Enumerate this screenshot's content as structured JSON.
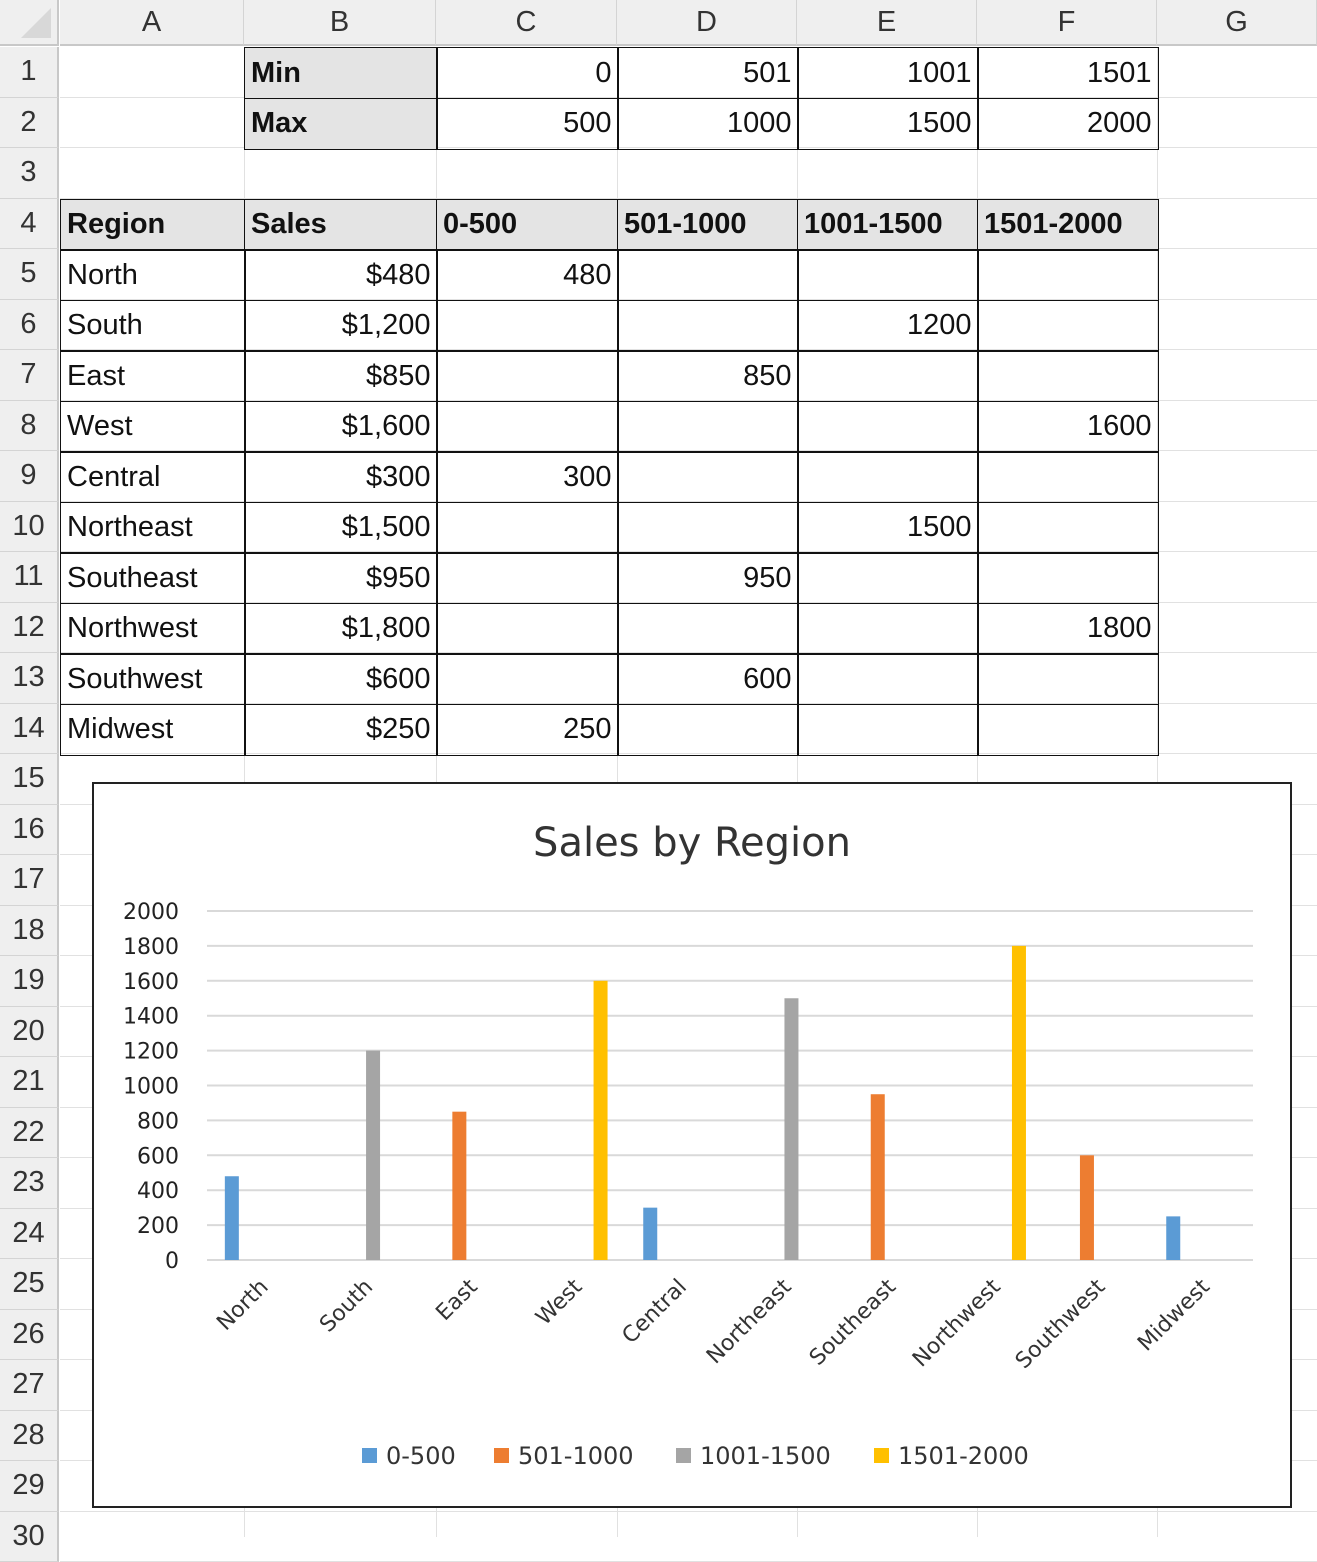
{
  "columns": [
    "A",
    "B",
    "C",
    "D",
    "E",
    "F",
    "G"
  ],
  "rows": [
    "1",
    "2",
    "3",
    "4",
    "5",
    "6",
    "7",
    "8",
    "9",
    "10",
    "11",
    "12",
    "13",
    "14",
    "15",
    "16",
    "17",
    "18",
    "19",
    "20",
    "21",
    "22",
    "23",
    "24",
    "25",
    "26",
    "27",
    "28",
    "29",
    "30"
  ],
  "bins": {
    "min_label": "Min",
    "max_label": "Max",
    "min": [
      "0",
      "501",
      "1001",
      "1501"
    ],
    "max": [
      "500",
      "1000",
      "1500",
      "2000"
    ]
  },
  "table": {
    "headers": [
      "Region",
      "Sales",
      "0-500",
      "501-1000",
      "1001-1500",
      "1501-2000"
    ],
    "rows": [
      [
        "North",
        "$480",
        "480",
        "",
        "",
        ""
      ],
      [
        "South",
        "$1,200",
        "",
        "",
        "1200",
        ""
      ],
      [
        "East",
        "$850",
        "",
        "850",
        "",
        ""
      ],
      [
        "West",
        "$1,600",
        "",
        "",
        "",
        "1600"
      ],
      [
        "Central",
        "$300",
        "300",
        "",
        "",
        ""
      ],
      [
        "Northeast",
        "$1,500",
        "",
        "",
        "1500",
        ""
      ],
      [
        "Southeast",
        "$950",
        "",
        "950",
        "",
        ""
      ],
      [
        "Northwest",
        "$1,800",
        "",
        "",
        "",
        "1800"
      ],
      [
        "Southwest",
        "$600",
        "",
        "600",
        "",
        ""
      ],
      [
        "Midwest",
        "$250",
        "250",
        "",
        "",
        ""
      ]
    ]
  },
  "chart_data": {
    "type": "bar",
    "title": "Sales by Region",
    "categories": [
      "North",
      "South",
      "East",
      "West",
      "Central",
      "Northeast",
      "Southeast",
      "Northwest",
      "Southwest",
      "Midwest"
    ],
    "series": [
      {
        "name": "0-500",
        "color": "#5b9bd5",
        "values": [
          480,
          null,
          null,
          null,
          300,
          null,
          null,
          null,
          null,
          250
        ]
      },
      {
        "name": "501-1000",
        "color": "#ed7d31",
        "values": [
          null,
          null,
          850,
          null,
          null,
          null,
          950,
          null,
          600,
          null
        ]
      },
      {
        "name": "1001-1500",
        "color": "#a5a5a5",
        "values": [
          null,
          1200,
          null,
          null,
          null,
          1500,
          null,
          null,
          null,
          null
        ]
      },
      {
        "name": "1501-2000",
        "color": "#ffc000",
        "values": [
          null,
          null,
          null,
          1600,
          null,
          null,
          null,
          1800,
          null,
          null
        ]
      }
    ],
    "ylim": [
      0,
      2000
    ],
    "yticks": [
      "0",
      "200",
      "400",
      "600",
      "800",
      "1000",
      "1200",
      "1400",
      "1600",
      "1800",
      "2000"
    ],
    "grid": true,
    "legend": "bottom"
  }
}
